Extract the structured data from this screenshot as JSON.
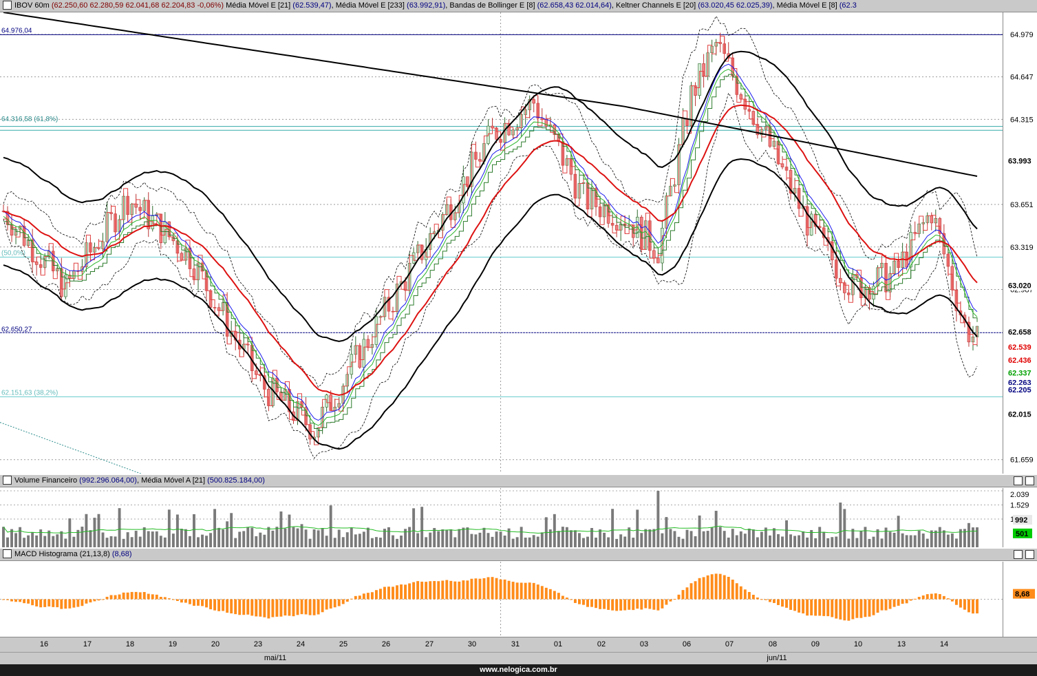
{
  "price_panel": {
    "header": {
      "symbol": "IBOV 60m",
      "ohlc": "(62.250,60",
      "ohlc2": "62.280,59",
      "ohlc3": "62.041,68",
      "ohlc4": "62.204,83",
      "ohlc5": "-0,06%)",
      "ma21_label": "Média Móvel E [21]",
      "ma21_val": "(62.539,47)",
      "ma233_label": "Média Móvel E [233]",
      "ma233_val": "(63.992,91)",
      "bb_label": "Bandas de Bollinger E [8]",
      "bb_val": "(62.658,43  62.014,64)",
      "kc_label": "Keltner Channels E [20]",
      "kc_val": "(63.020,45  62.025,39)",
      "ma8_label": "Média Móvel E [8]",
      "ma8_val": "(62.3"
    },
    "line_labels": {
      "top": "64.976,04",
      "fib1": "64.316,58 (61,8%)",
      "fib2": "(50,0%)",
      "mid": "62.650,27",
      "fib3": "62.151,63 (38,2%)"
    }
  },
  "volume_panel": {
    "title": "Volume Financeiro",
    "value": "(992.296.064,00)",
    "ma_label": "Média Móvel A [21]",
    "ma_value": "(500.825.184,00)",
    "ticks": [
      "2.039",
      "1.529",
      "1"
    ],
    "badges": {
      "vol": "992",
      "ma": "501"
    }
  },
  "macd_panel": {
    "title": "MACD Histograma (21,13,8)",
    "value": "(8,68)",
    "badge": "8,68"
  },
  "chart_data": {
    "type": "candlestick",
    "title": "IBOV 60m",
    "y_ticks": [
      "64.979",
      "64.647",
      "64.315",
      "63.651",
      "63.319",
      "62.987",
      "61.659"
    ],
    "price_badges": [
      {
        "value": "63.993",
        "color": "#000000"
      },
      {
        "value": "63.020",
        "color": "#000000"
      },
      {
        "value": "62.658",
        "color": "#000000"
      },
      {
        "value": "62.539",
        "color": "#e00000"
      },
      {
        "value": "62.436",
        "color": "#e00000"
      },
      {
        "value": "62.337",
        "color": "#00a000"
      },
      {
        "value": "62.263",
        "color": "#000080"
      },
      {
        "value": "62.205",
        "color": "#000080"
      },
      {
        "value": "62.015",
        "color": "#000000"
      }
    ],
    "horizontal_lines": [
      64976,
      64260,
      64230,
      63240,
      62650,
      62150
    ],
    "x_labels": [
      "16",
      "17",
      "18",
      "19",
      "20",
      "23",
      "24",
      "25",
      "26",
      "27",
      "30",
      "31",
      "01",
      "02",
      "03",
      "06",
      "07",
      "08",
      "09",
      "10",
      "13",
      "14"
    ],
    "months": [
      "mai/11",
      "jun/11"
    ],
    "ylim": [
      61550,
      65150
    ],
    "series": [
      {
        "name": "Média Móvel E [233]",
        "color": "#000000"
      },
      {
        "name": "Média Móvel E [21]",
        "color": "#e00000"
      },
      {
        "name": "Média Móvel E [8]",
        "color": "#00a000"
      },
      {
        "name": "Keltner Channels E [20]",
        "color": "#000000"
      },
      {
        "name": "Bandas de Bollinger E [8]",
        "color": "#000000"
      }
    ],
    "volume_ylim": [
      0,
      2039
    ],
    "macd_ylim": [
      -60,
      60
    ]
  },
  "footer": "www.nelogica.com.br"
}
